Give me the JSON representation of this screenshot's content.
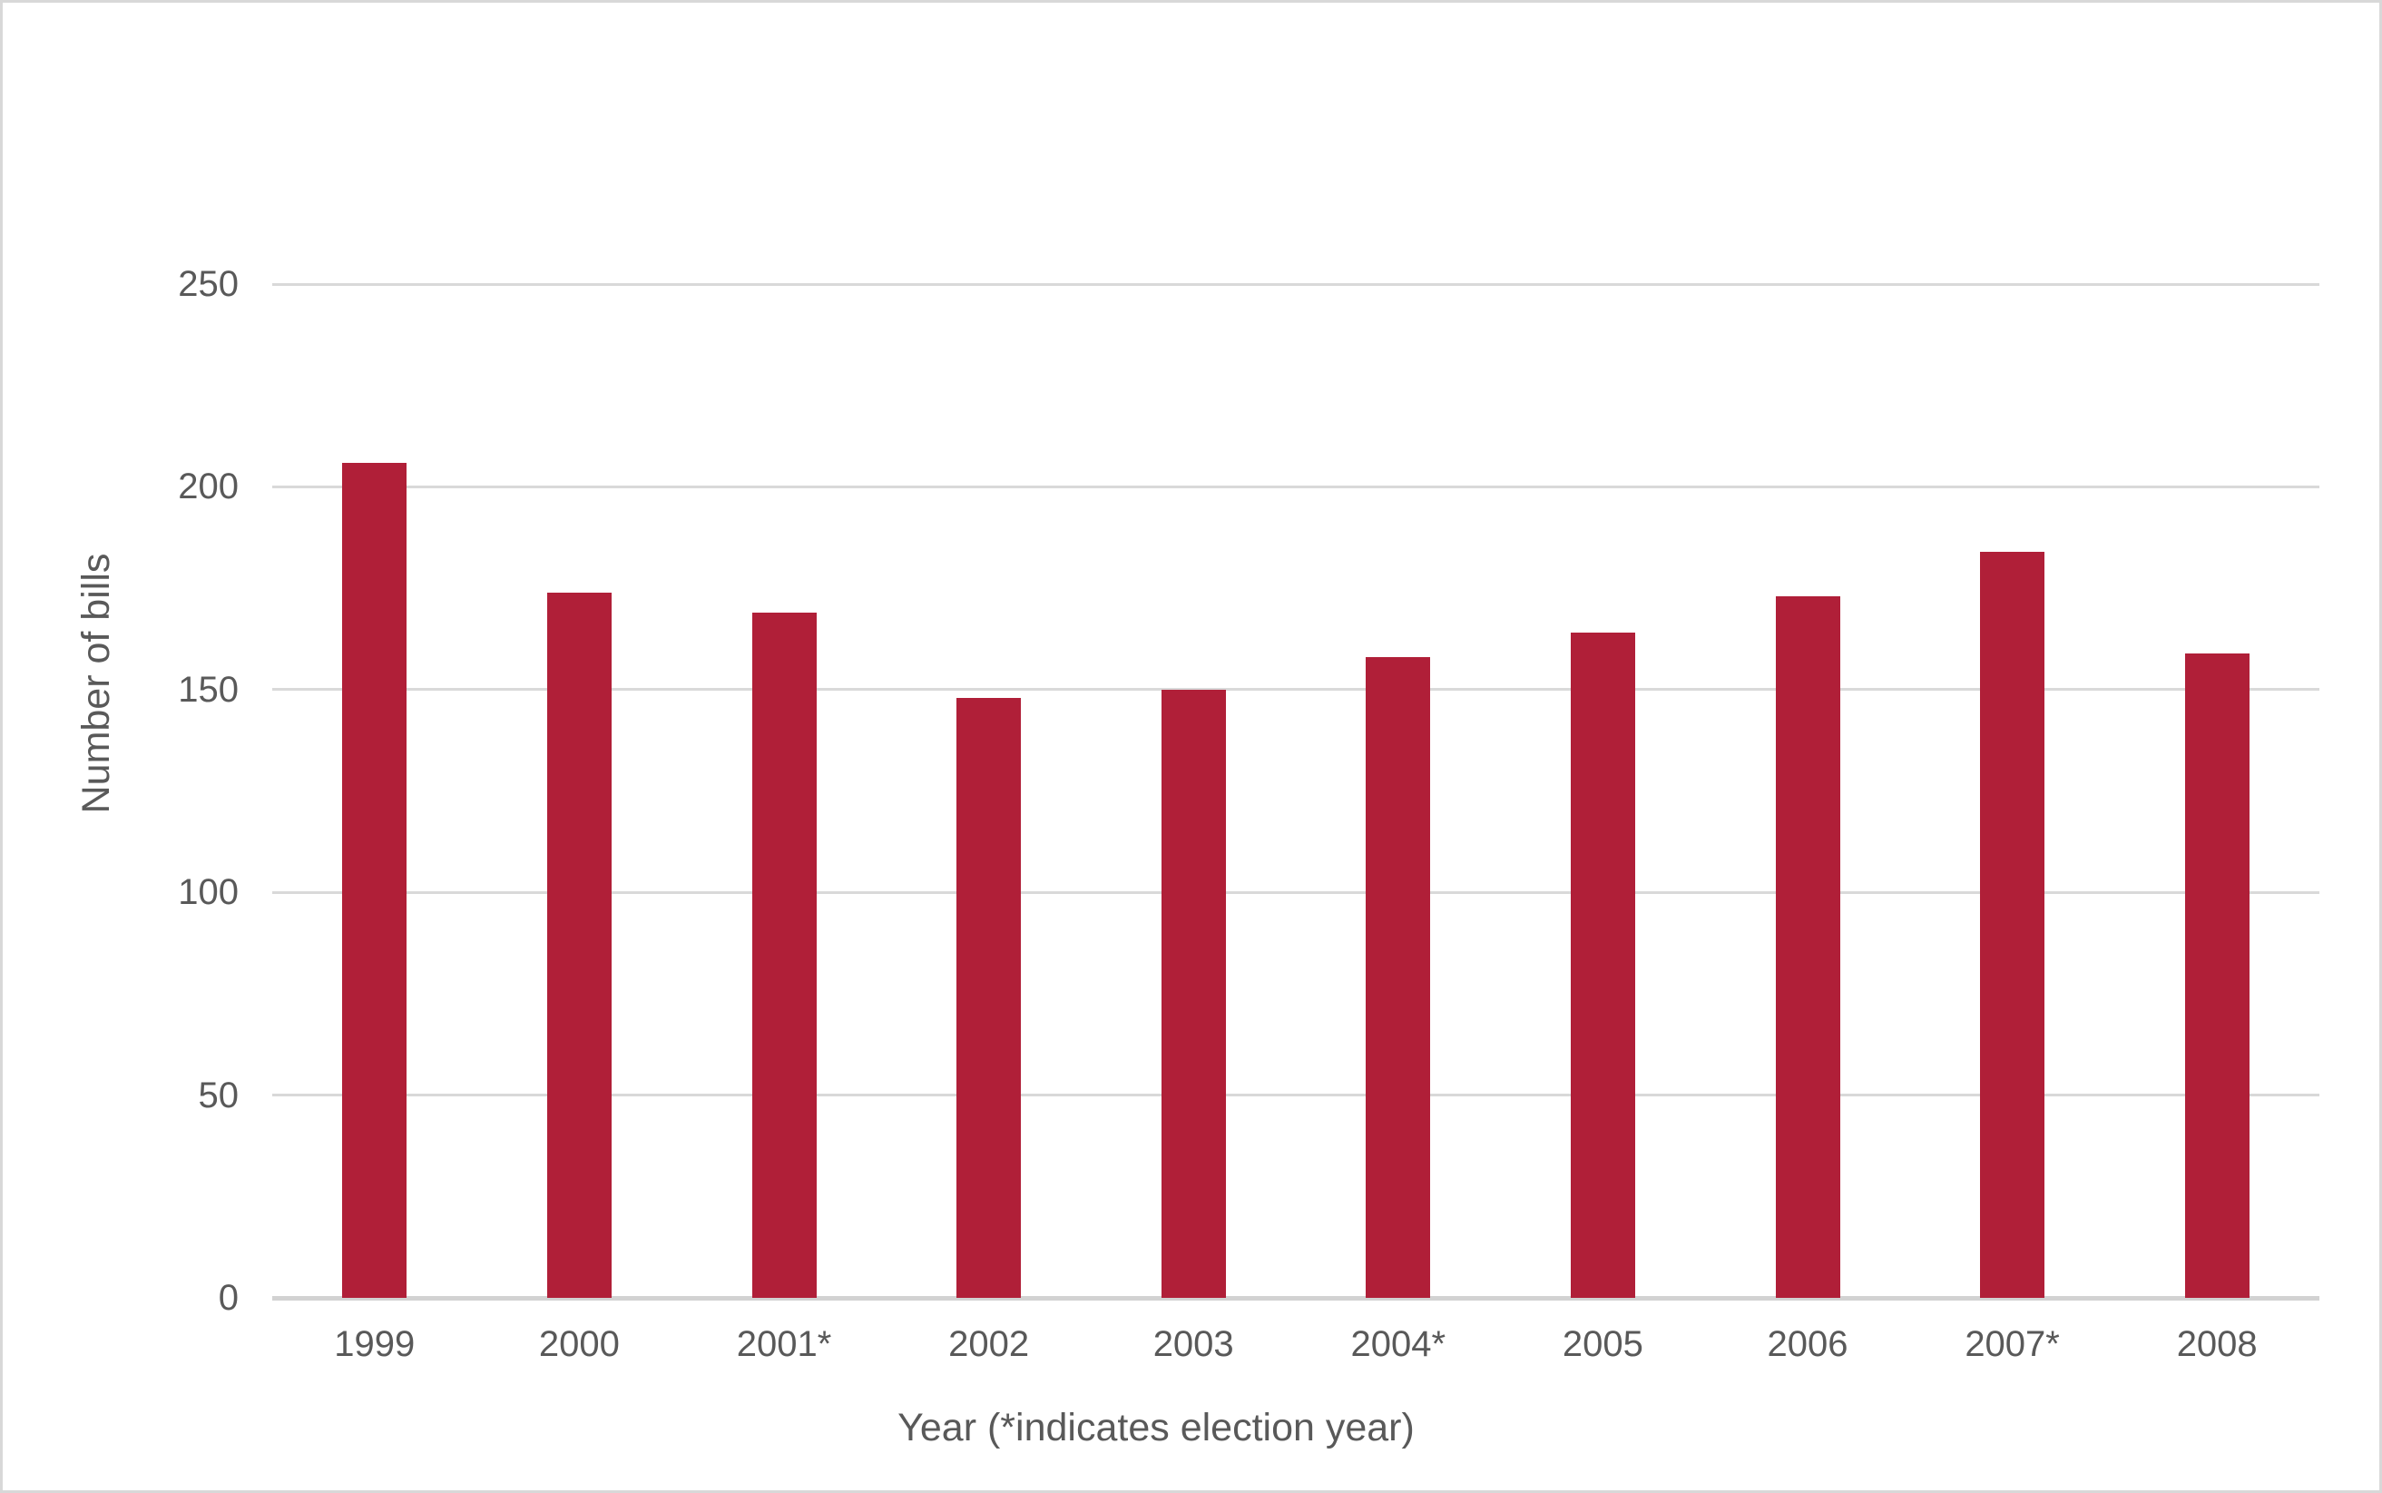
{
  "chart_data": {
    "type": "bar",
    "title": "",
    "xlabel": "Year (*indicates election year)",
    "ylabel": "Number of bills",
    "categories": [
      "1999",
      "2000",
      "2001*",
      "2002",
      "2003",
      "2004*",
      "2005",
      "2006",
      "2007*",
      "2008"
    ],
    "values": [
      206,
      174,
      169,
      148,
      150,
      158,
      164,
      173,
      184,
      159
    ],
    "yticks": [
      0,
      50,
      100,
      150,
      200,
      250
    ],
    "ylim": [
      0,
      250
    ],
    "grid": "horizontal",
    "legend": "none",
    "colors": {
      "bar": "#b01f38",
      "gridline": "#d9d9d9",
      "axis_line": "#d2d2d2",
      "text": "#595959",
      "page_border": "#d8d8d8",
      "background": "#ffffff"
    }
  }
}
